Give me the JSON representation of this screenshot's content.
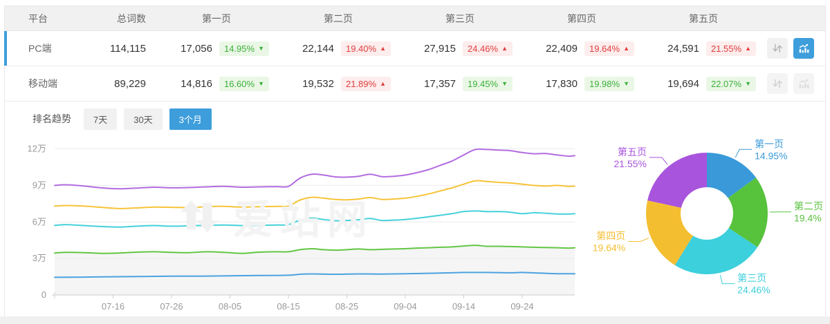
{
  "table": {
    "headers": [
      "平台",
      "总词数",
      "第一页",
      "第二页",
      "第三页",
      "第四页",
      "第五页"
    ],
    "rows": [
      {
        "platform": "PC端",
        "total": "114,115",
        "selected": true,
        "chart_active": true,
        "pages": [
          {
            "value": "17,056",
            "pct": "14.95%",
            "dir": "down"
          },
          {
            "value": "22,144",
            "pct": "19.40%",
            "dir": "up"
          },
          {
            "value": "27,915",
            "pct": "24.46%",
            "dir": "up"
          },
          {
            "value": "22,409",
            "pct": "19.64%",
            "dir": "up"
          },
          {
            "value": "24,591",
            "pct": "21.55%",
            "dir": "up"
          }
        ]
      },
      {
        "platform": "移动端",
        "total": "89,229",
        "selected": false,
        "chart_active": false,
        "pages": [
          {
            "value": "14,816",
            "pct": "16.60%",
            "dir": "down"
          },
          {
            "value": "19,532",
            "pct": "21.89%",
            "dir": "up"
          },
          {
            "value": "17,357",
            "pct": "19.45%",
            "dir": "down"
          },
          {
            "value": "17,830",
            "pct": "19.98%",
            "dir": "down"
          },
          {
            "value": "19,694",
            "pct": "22.07%",
            "dir": "down"
          }
        ]
      }
    ],
    "row_action_icons": [
      "updown-arrows",
      "trend-chart"
    ]
  },
  "trend": {
    "title": "排名趋势",
    "tabs": [
      {
        "label": "7天",
        "active": false
      },
      {
        "label": "30天",
        "active": false
      },
      {
        "label": "3个月",
        "active": true
      }
    ]
  },
  "watermark": {
    "text": "爱站网"
  },
  "colors": {
    "accent_blue": "#3e9edc",
    "badge_up_text": "#e23d3d",
    "badge_up_bg": "#fdeded",
    "badge_down_text": "#3db03a",
    "badge_down_bg": "#eaf7e6",
    "grid_line": "#ececec",
    "axis_line": "#cccccc",
    "tick_text": "#999999",
    "area_fill": "#f5f5f5"
  },
  "chart_data": [
    {
      "type": "line",
      "title": "排名趋势（3个月）",
      "x_axis": {
        "range_days": [
          0,
          89
        ],
        "ticks": [
          {
            "day": 10,
            "label": "07-16"
          },
          {
            "day": 20,
            "label": "07-26"
          },
          {
            "day": 30,
            "label": "08-05"
          },
          {
            "day": 40,
            "label": "08-15"
          },
          {
            "day": 50,
            "label": "08-25"
          },
          {
            "day": 60,
            "label": "09-04"
          },
          {
            "day": 70,
            "label": "09-14"
          },
          {
            "day": 80,
            "label": "09-24"
          }
        ]
      },
      "y_axis": {
        "unit": "万",
        "max": 12,
        "ticks": [
          {
            "value": 0,
            "label": "0"
          },
          {
            "value": 3,
            "label": "3万"
          },
          {
            "value": 6,
            "label": "6万"
          },
          {
            "value": 9,
            "label": "9万"
          },
          {
            "value": 12,
            "label": "12万"
          }
        ]
      },
      "grid": true,
      "legend": "none",
      "series": [
        {
          "name": "purple",
          "color": "#b26ce0",
          "points": [
            [
              0,
              9.0
            ],
            [
              2,
              9.05
            ],
            [
              5,
              8.95
            ],
            [
              8,
              8.8
            ],
            [
              11,
              8.72
            ],
            [
              14,
              8.78
            ],
            [
              17,
              8.85
            ],
            [
              20,
              8.8
            ],
            [
              23,
              8.82
            ],
            [
              26,
              8.88
            ],
            [
              29,
              8.92
            ],
            [
              32,
              8.85
            ],
            [
              35,
              8.88
            ],
            [
              38,
              8.9
            ],
            [
              40,
              8.92
            ],
            [
              42,
              9.6
            ],
            [
              44,
              9.92
            ],
            [
              46,
              9.85
            ],
            [
              48,
              9.7
            ],
            [
              50,
              9.68
            ],
            [
              52,
              9.75
            ],
            [
              54,
              9.92
            ],
            [
              56,
              9.72
            ],
            [
              58,
              9.75
            ],
            [
              60,
              9.85
            ],
            [
              62,
              10.05
            ],
            [
              64,
              10.3
            ],
            [
              66,
              10.65
            ],
            [
              68,
              11.0
            ],
            [
              70,
              11.5
            ],
            [
              72,
              11.95
            ],
            [
              74,
              11.95
            ],
            [
              76,
              11.9
            ],
            [
              78,
              11.85
            ],
            [
              80,
              11.7
            ],
            [
              82,
              11.6
            ],
            [
              84,
              11.62
            ],
            [
              86,
              11.5
            ],
            [
              88,
              11.4
            ],
            [
              89,
              11.45
            ]
          ]
        },
        {
          "name": "yellow",
          "color": "#f6c337",
          "points": [
            [
              0,
              7.3
            ],
            [
              2,
              7.35
            ],
            [
              5,
              7.3
            ],
            [
              8,
              7.2
            ],
            [
              11,
              7.1
            ],
            [
              14,
              7.15
            ],
            [
              17,
              7.22
            ],
            [
              20,
              7.2
            ],
            [
              23,
              7.18
            ],
            [
              26,
              7.25
            ],
            [
              29,
              7.28
            ],
            [
              32,
              7.22
            ],
            [
              35,
              7.25
            ],
            [
              38,
              7.28
            ],
            [
              40,
              7.3
            ],
            [
              42,
              7.8
            ],
            [
              44,
              8.02
            ],
            [
              46,
              7.95
            ],
            [
              48,
              7.85
            ],
            [
              50,
              7.82
            ],
            [
              52,
              7.88
            ],
            [
              54,
              8.0
            ],
            [
              56,
              7.85
            ],
            [
              58,
              7.88
            ],
            [
              60,
              7.95
            ],
            [
              62,
              8.1
            ],
            [
              64,
              8.3
            ],
            [
              66,
              8.55
            ],
            [
              68,
              8.8
            ],
            [
              70,
              9.1
            ],
            [
              72,
              9.38
            ],
            [
              74,
              9.32
            ],
            [
              76,
              9.25
            ],
            [
              78,
              9.2
            ],
            [
              80,
              9.1
            ],
            [
              82,
              9.0
            ],
            [
              84,
              8.95
            ],
            [
              86,
              9.0
            ],
            [
              88,
              8.92
            ],
            [
              89,
              8.95
            ]
          ]
        },
        {
          "name": "cyan",
          "color": "#45d1da",
          "points": [
            [
              0,
              5.72
            ],
            [
              2,
              5.78
            ],
            [
              5,
              5.7
            ],
            [
              8,
              5.62
            ],
            [
              11,
              5.58
            ],
            [
              14,
              5.65
            ],
            [
              17,
              5.7
            ],
            [
              20,
              5.65
            ],
            [
              23,
              5.68
            ],
            [
              26,
              5.72
            ],
            [
              29,
              5.75
            ],
            [
              32,
              5.7
            ],
            [
              35,
              5.72
            ],
            [
              38,
              5.75
            ],
            [
              40,
              5.78
            ],
            [
              42,
              6.15
            ],
            [
              44,
              6.32
            ],
            [
              46,
              6.2
            ],
            [
              48,
              6.1
            ],
            [
              50,
              6.12
            ],
            [
              52,
              6.18
            ],
            [
              54,
              6.28
            ],
            [
              56,
              6.12
            ],
            [
              58,
              6.15
            ],
            [
              60,
              6.2
            ],
            [
              62,
              6.3
            ],
            [
              64,
              6.42
            ],
            [
              66,
              6.55
            ],
            [
              68,
              6.68
            ],
            [
              70,
              6.85
            ],
            [
              72,
              6.9
            ],
            [
              74,
              6.85
            ],
            [
              76,
              6.85
            ],
            [
              78,
              6.8
            ],
            [
              80,
              6.68
            ],
            [
              82,
              6.75
            ],
            [
              84,
              6.72
            ],
            [
              86,
              6.65
            ],
            [
              88,
              6.65
            ],
            [
              89,
              6.68
            ]
          ]
        },
        {
          "name": "green",
          "color": "#62c643",
          "area": true,
          "points": [
            [
              0,
              3.45
            ],
            [
              2,
              3.5
            ],
            [
              5,
              3.48
            ],
            [
              8,
              3.42
            ],
            [
              11,
              3.45
            ],
            [
              14,
              3.52
            ],
            [
              17,
              3.55
            ],
            [
              20,
              3.5
            ],
            [
              23,
              3.48
            ],
            [
              26,
              3.55
            ],
            [
              29,
              3.5
            ],
            [
              32,
              3.42
            ],
            [
              35,
              3.52
            ],
            [
              38,
              3.55
            ],
            [
              40,
              3.55
            ],
            [
              42,
              3.72
            ],
            [
              44,
              3.8
            ],
            [
              46,
              3.72
            ],
            [
              48,
              3.68
            ],
            [
              50,
              3.72
            ],
            [
              52,
              3.78
            ],
            [
              54,
              3.72
            ],
            [
              56,
              3.75
            ],
            [
              58,
              3.78
            ],
            [
              60,
              3.8
            ],
            [
              62,
              3.85
            ],
            [
              64,
              3.88
            ],
            [
              66,
              3.92
            ],
            [
              68,
              3.95
            ],
            [
              70,
              4.02
            ],
            [
              72,
              4.08
            ],
            [
              74,
              4.0
            ],
            [
              76,
              4.0
            ],
            [
              78,
              3.98
            ],
            [
              80,
              3.95
            ],
            [
              82,
              3.92
            ],
            [
              84,
              3.9
            ],
            [
              86,
              3.88
            ],
            [
              88,
              3.85
            ],
            [
              89,
              3.88
            ]
          ]
        },
        {
          "name": "blue",
          "color": "#4ba2e0",
          "points": [
            [
              0,
              1.45
            ],
            [
              5,
              1.47
            ],
            [
              10,
              1.5
            ],
            [
              15,
              1.52
            ],
            [
              20,
              1.55
            ],
            [
              25,
              1.55
            ],
            [
              30,
              1.58
            ],
            [
              35,
              1.6
            ],
            [
              40,
              1.62
            ],
            [
              42,
              1.7
            ],
            [
              44,
              1.73
            ],
            [
              48,
              1.7
            ],
            [
              52,
              1.73
            ],
            [
              56,
              1.72
            ],
            [
              60,
              1.75
            ],
            [
              64,
              1.78
            ],
            [
              68,
              1.82
            ],
            [
              70,
              1.85
            ],
            [
              74,
              1.85
            ],
            [
              78,
              1.82
            ],
            [
              80,
              1.85
            ],
            [
              83,
              1.8
            ],
            [
              86,
              1.75
            ],
            [
              89,
              1.75
            ]
          ]
        }
      ]
    },
    {
      "type": "donut",
      "start_angle": "top",
      "direction": "clockwise",
      "inner_radius_ratio": 0.43,
      "slices": [
        {
          "label": "第一页",
          "pct": 14.95,
          "pct_label": "14.95%",
          "color": "#3a9ad9"
        },
        {
          "label": "第二页",
          "pct": 19.4,
          "pct_label": "19.4%",
          "color": "#57c23c"
        },
        {
          "label": "第三页",
          "pct": 24.46,
          "pct_label": "24.46%",
          "color": "#3ccfdc"
        },
        {
          "label": "第四页",
          "pct": 19.64,
          "pct_label": "19.64%",
          "color": "#f4be31"
        },
        {
          "label": "第五页",
          "pct": 21.55,
          "pct_label": "21.55%",
          "color": "#a854dd"
        }
      ]
    }
  ]
}
